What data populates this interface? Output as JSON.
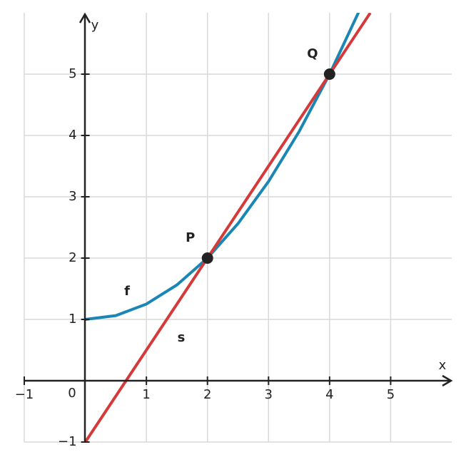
{
  "chart_data": {
    "type": "line",
    "x_label": "x",
    "y_label": "y",
    "origin_label": "0",
    "xlim": [
      -1,
      6
    ],
    "ylim": [
      -1,
      6
    ],
    "xticks": [
      {
        "value": -1,
        "label": "−1"
      },
      1,
      2,
      3,
      4,
      5
    ],
    "yticks": [
      {
        "value": -1,
        "label": "−1"
      },
      1,
      2,
      3,
      4,
      5
    ],
    "grid": true,
    "series": [
      {
        "name": "f",
        "color": "#1a86b4",
        "x": [
          0,
          0.5,
          1,
          1.5,
          2,
          2.5,
          3,
          3.5,
          4,
          4.5
        ],
        "values": [
          1,
          1.0625,
          1.25,
          1.5625,
          2,
          2.5625,
          3.25,
          4.0625,
          5,
          6.0625
        ]
      },
      {
        "name": "s",
        "color": "#d43a3a",
        "x": [
          0,
          4.6667
        ],
        "values": [
          -1,
          6
        ]
      }
    ],
    "points": [
      {
        "label": "P",
        "x": 2,
        "y": 2
      },
      {
        "label": "Q",
        "x": 4,
        "y": 5
      }
    ]
  }
}
